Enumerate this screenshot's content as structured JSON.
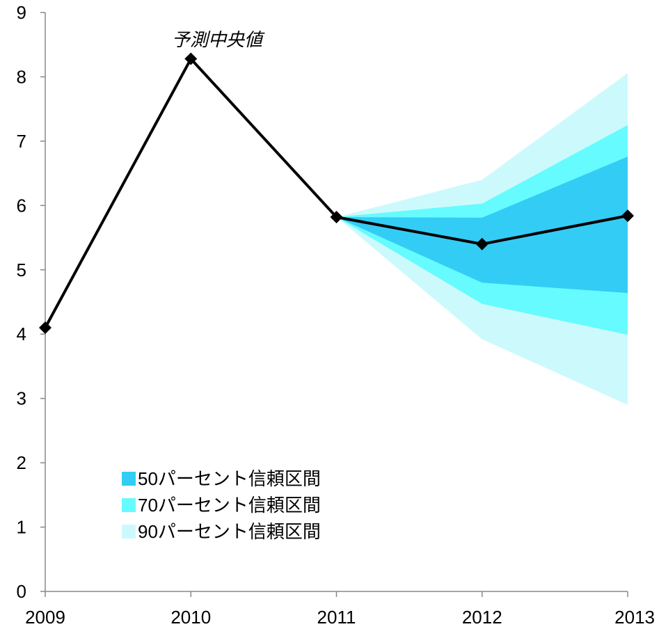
{
  "chart_data": {
    "type": "line",
    "x": [
      "2009",
      "2010",
      "2011",
      "2012",
      "2013"
    ],
    "ylim": [
      0,
      9
    ],
    "y_ticks": [
      "0",
      "1",
      "2",
      "3",
      "4",
      "5",
      "6",
      "7",
      "8",
      "9"
    ],
    "grid": false,
    "annotation": "予測中央値",
    "series": [
      {
        "name": "",
        "values": [
          4.1,
          8.28,
          5.82,
          5.4,
          5.84
        ],
        "color": "#000000"
      }
    ],
    "bands": [
      {
        "name": "90パーセント信頼区間",
        "color": "#ccfafc",
        "lower": [
          null,
          null,
          5.82,
          3.92,
          2.9
        ],
        "upper": [
          null,
          null,
          5.82,
          6.4,
          8.06
        ]
      },
      {
        "name": "70パーセント信頼区間",
        "color": "#66fbfe",
        "lower": [
          null,
          null,
          5.82,
          4.47,
          3.99
        ],
        "upper": [
          null,
          null,
          5.82,
          6.03,
          7.25
        ]
      },
      {
        "name": "50パーセント信頼区間",
        "color": "#33ccf5",
        "lower": [
          null,
          null,
          5.82,
          4.8,
          4.64
        ],
        "upper": [
          null,
          null,
          5.82,
          5.81,
          6.76
        ]
      }
    ],
    "legend": [
      {
        "label": "50パーセント信頼区間",
        "color": "#33ccf5"
      },
      {
        "label": "70パーセント信頼区間",
        "color": "#66fbfe"
      },
      {
        "label": "90パーセント信頼区間",
        "color": "#ccfafc"
      }
    ],
    "legend_position": "bottom-left"
  }
}
